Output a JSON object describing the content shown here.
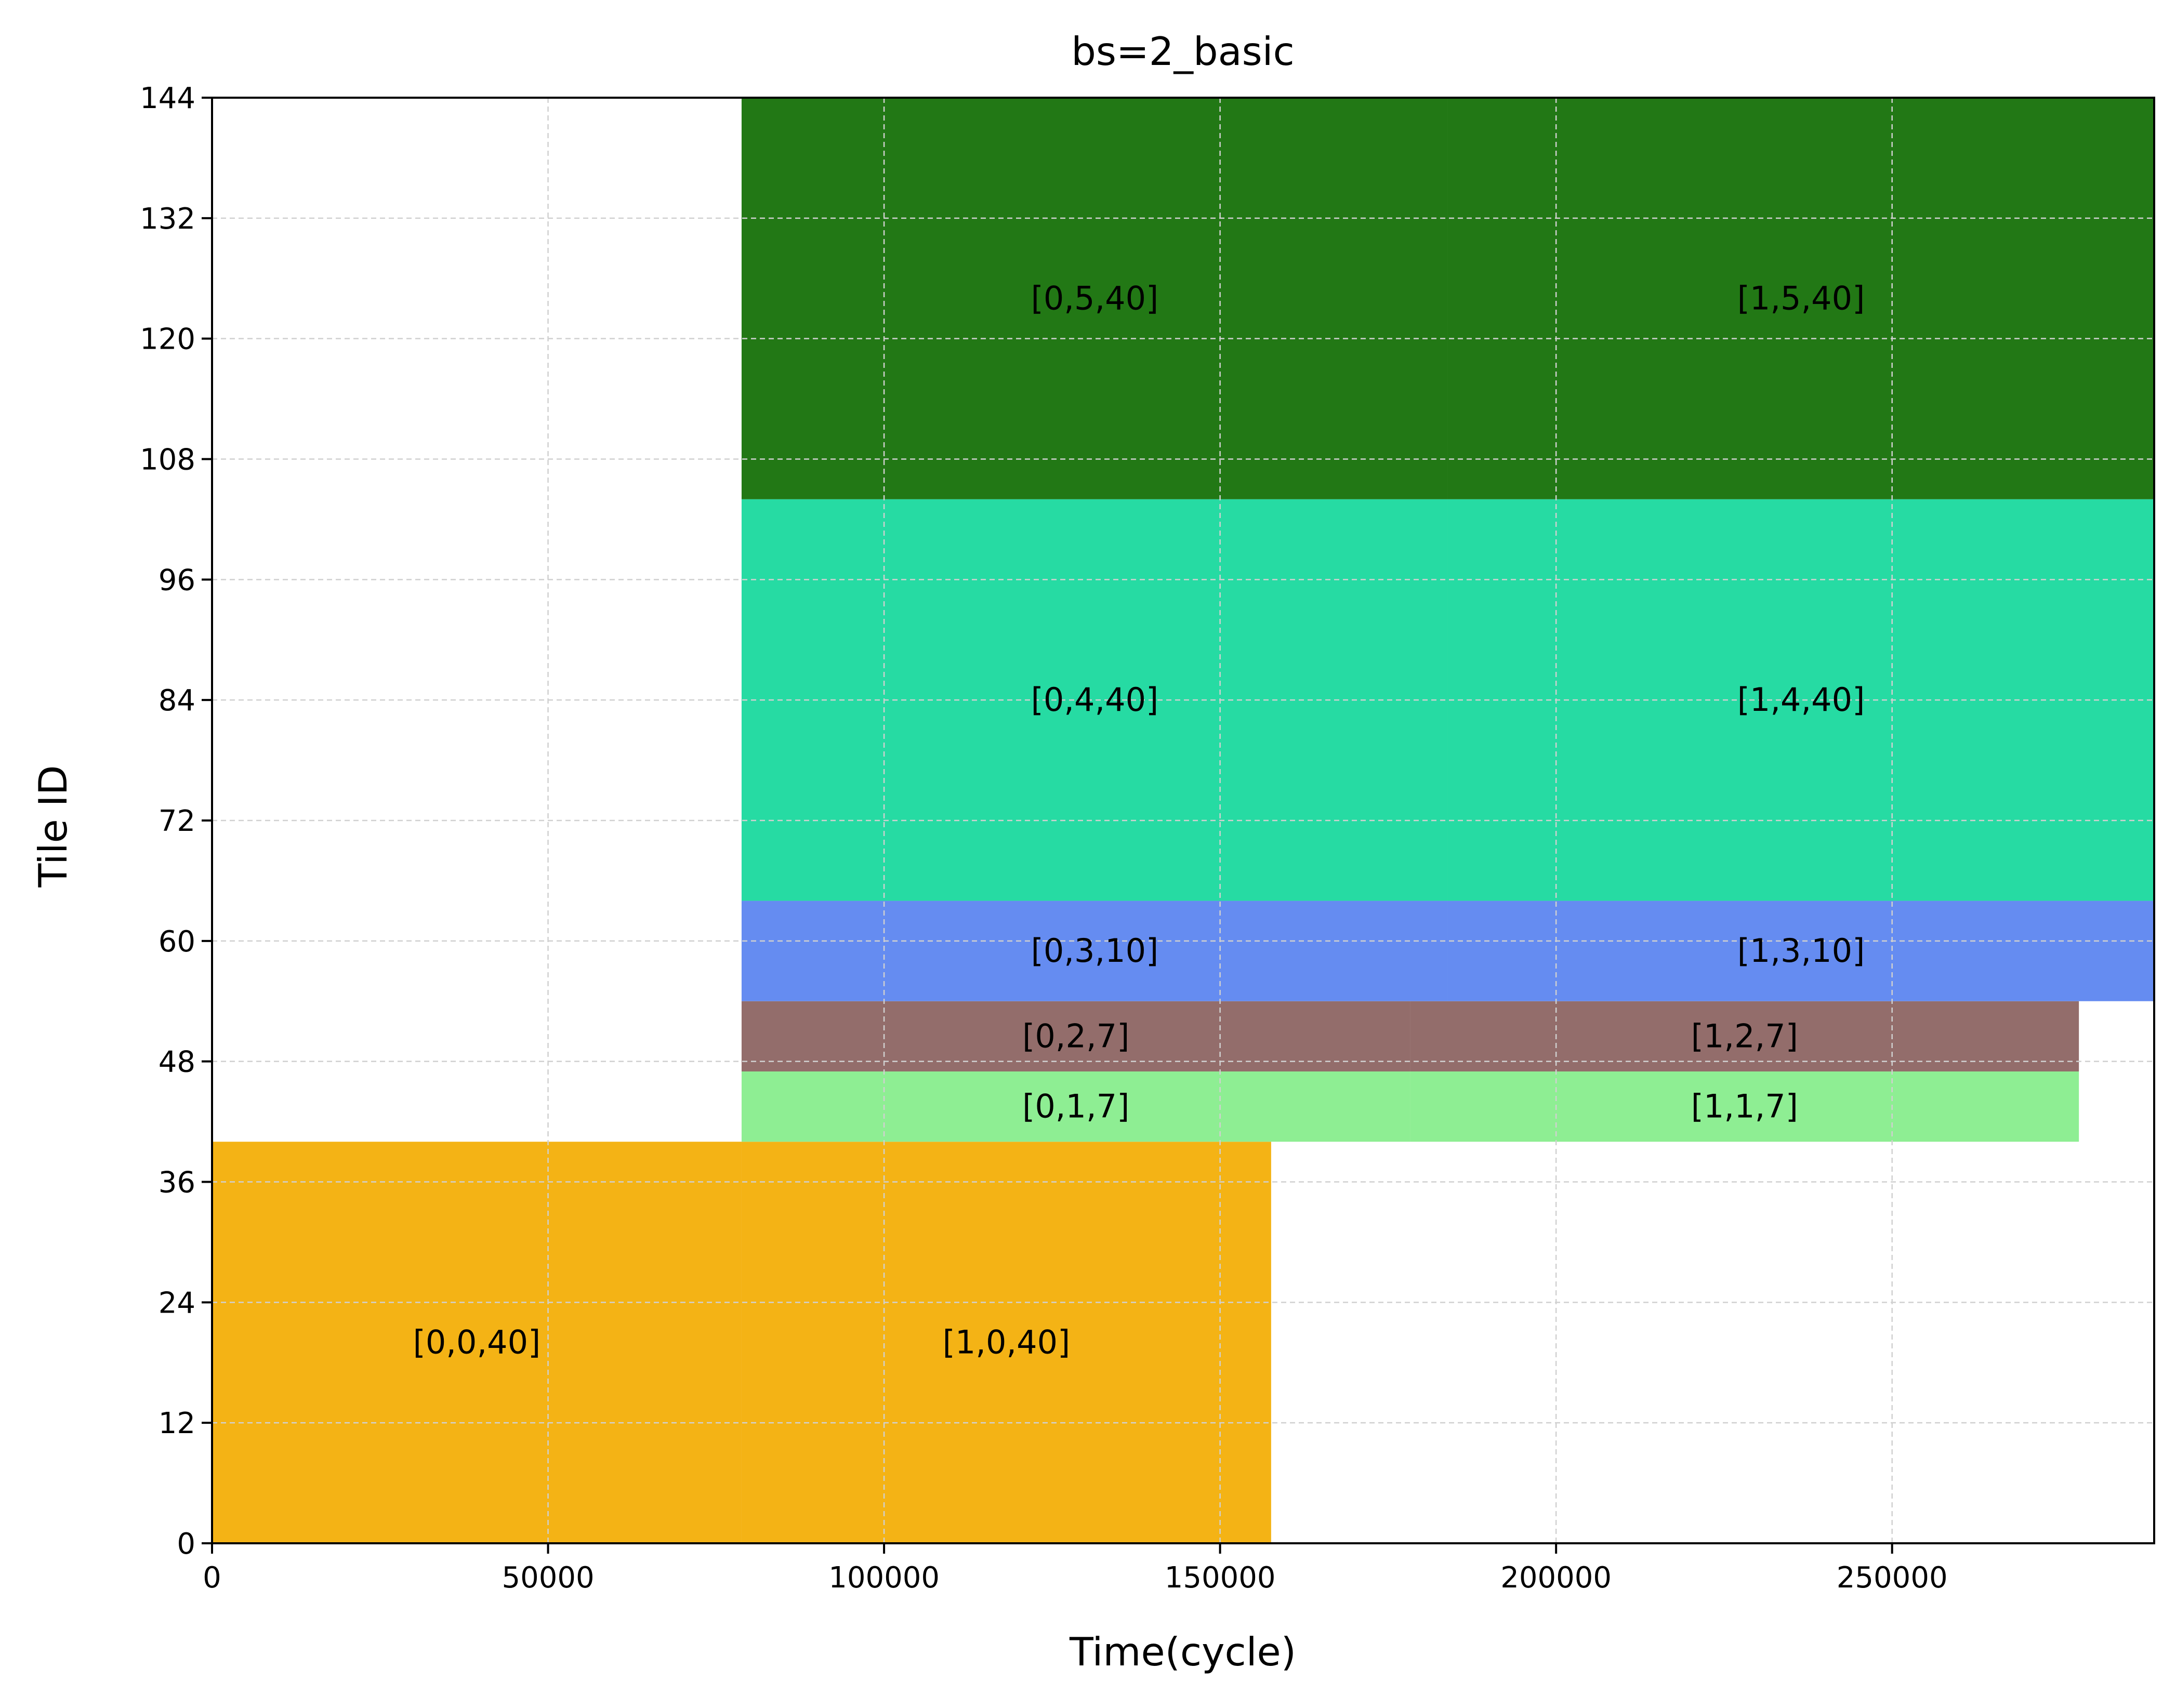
{
  "chart_data": {
    "type": "timeline",
    "title": "bs=2_basic",
    "xlabel": "Time(cycle)",
    "ylabel": "Tile ID",
    "xlim": [
      0,
      289000
    ],
    "ylim": [
      0,
      144
    ],
    "xticks": [
      0,
      50000,
      100000,
      150000,
      200000,
      250000
    ],
    "yticks": [
      0,
      12,
      24,
      36,
      48,
      60,
      72,
      84,
      96,
      108,
      120,
      132,
      144
    ],
    "grid": true,
    "blocks": [
      {
        "label": "[0,0,40]",
        "x0": 0,
        "x1": 78800,
        "y0": 0,
        "y1": 40,
        "color": "#F4B315"
      },
      {
        "label": "[1,0,40]",
        "x0": 78800,
        "x1": 157600,
        "y0": 0,
        "y1": 40,
        "color": "#F4B315"
      },
      {
        "label": "[0,1,7]",
        "x0": 78800,
        "x1": 178300,
        "y0": 40,
        "y1": 47,
        "color": "#8EEE93"
      },
      {
        "label": "[1,1,7]",
        "x0": 178300,
        "x1": 277800,
        "y0": 40,
        "y1": 47,
        "color": "#8EEE93"
      },
      {
        "label": "[0,2,7]",
        "x0": 78800,
        "x1": 178300,
        "y0": 47,
        "y1": 54,
        "color": "#936D6B"
      },
      {
        "label": "[1,2,7]",
        "x0": 178300,
        "x1": 277800,
        "y0": 47,
        "y1": 54,
        "color": "#936D6B"
      },
      {
        "label": "[0,3,10]",
        "x0": 78800,
        "x1": 183900,
        "y0": 54,
        "y1": 64,
        "color": "#658CF1"
      },
      {
        "label": "[1,3,10]",
        "x0": 183900,
        "x1": 289000,
        "y0": 54,
        "y1": 64,
        "color": "#658CF1"
      },
      {
        "label": "[0,4,40]",
        "x0": 78800,
        "x1": 183900,
        "y0": 64,
        "y1": 104,
        "color": "#26DBA3"
      },
      {
        "label": "[1,4,40]",
        "x0": 183900,
        "x1": 289000,
        "y0": 64,
        "y1": 104,
        "color": "#26DBA3"
      },
      {
        "label": "[0,5,40]",
        "x0": 78800,
        "x1": 183900,
        "y0": 104,
        "y1": 144,
        "color": "#227815"
      },
      {
        "label": "[1,5,40]",
        "x0": 183900,
        "x1": 289000,
        "y0": 104,
        "y1": 144,
        "color": "#227815"
      }
    ]
  }
}
